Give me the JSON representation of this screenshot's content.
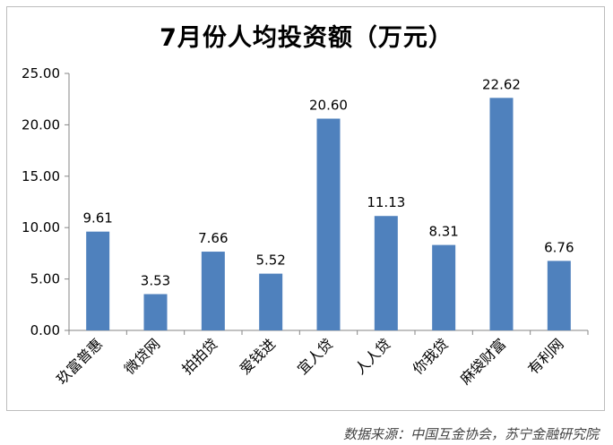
{
  "chart_data": {
    "type": "bar",
    "title": "7月份人均投资额（万元）",
    "categories": [
      "玖富普惠",
      "微贷网",
      "拍拍贷",
      "爱钱进",
      "宜人贷",
      "人人贷",
      "你我贷",
      "麻袋财富",
      "有利网"
    ],
    "values": [
      9.61,
      3.53,
      7.66,
      5.52,
      20.6,
      11.13,
      8.31,
      22.62,
      6.76
    ],
    "value_labels": [
      "9.61",
      "3.53",
      "7.66",
      "5.52",
      "20.60",
      "11.13",
      "8.31",
      "22.62",
      "6.76"
    ],
    "ylim": [
      0,
      25
    ],
    "yticks": [
      "0.00",
      "5.00",
      "10.00",
      "15.00",
      "20.00",
      "25.00"
    ],
    "ytick_values": [
      0,
      5,
      10,
      15,
      20,
      25
    ],
    "xlabel": "",
    "ylabel": "",
    "grid": false,
    "bar_color": "#4f81bd"
  },
  "source_note": "数据来源：中国互金协会，苏宁金融研究院"
}
